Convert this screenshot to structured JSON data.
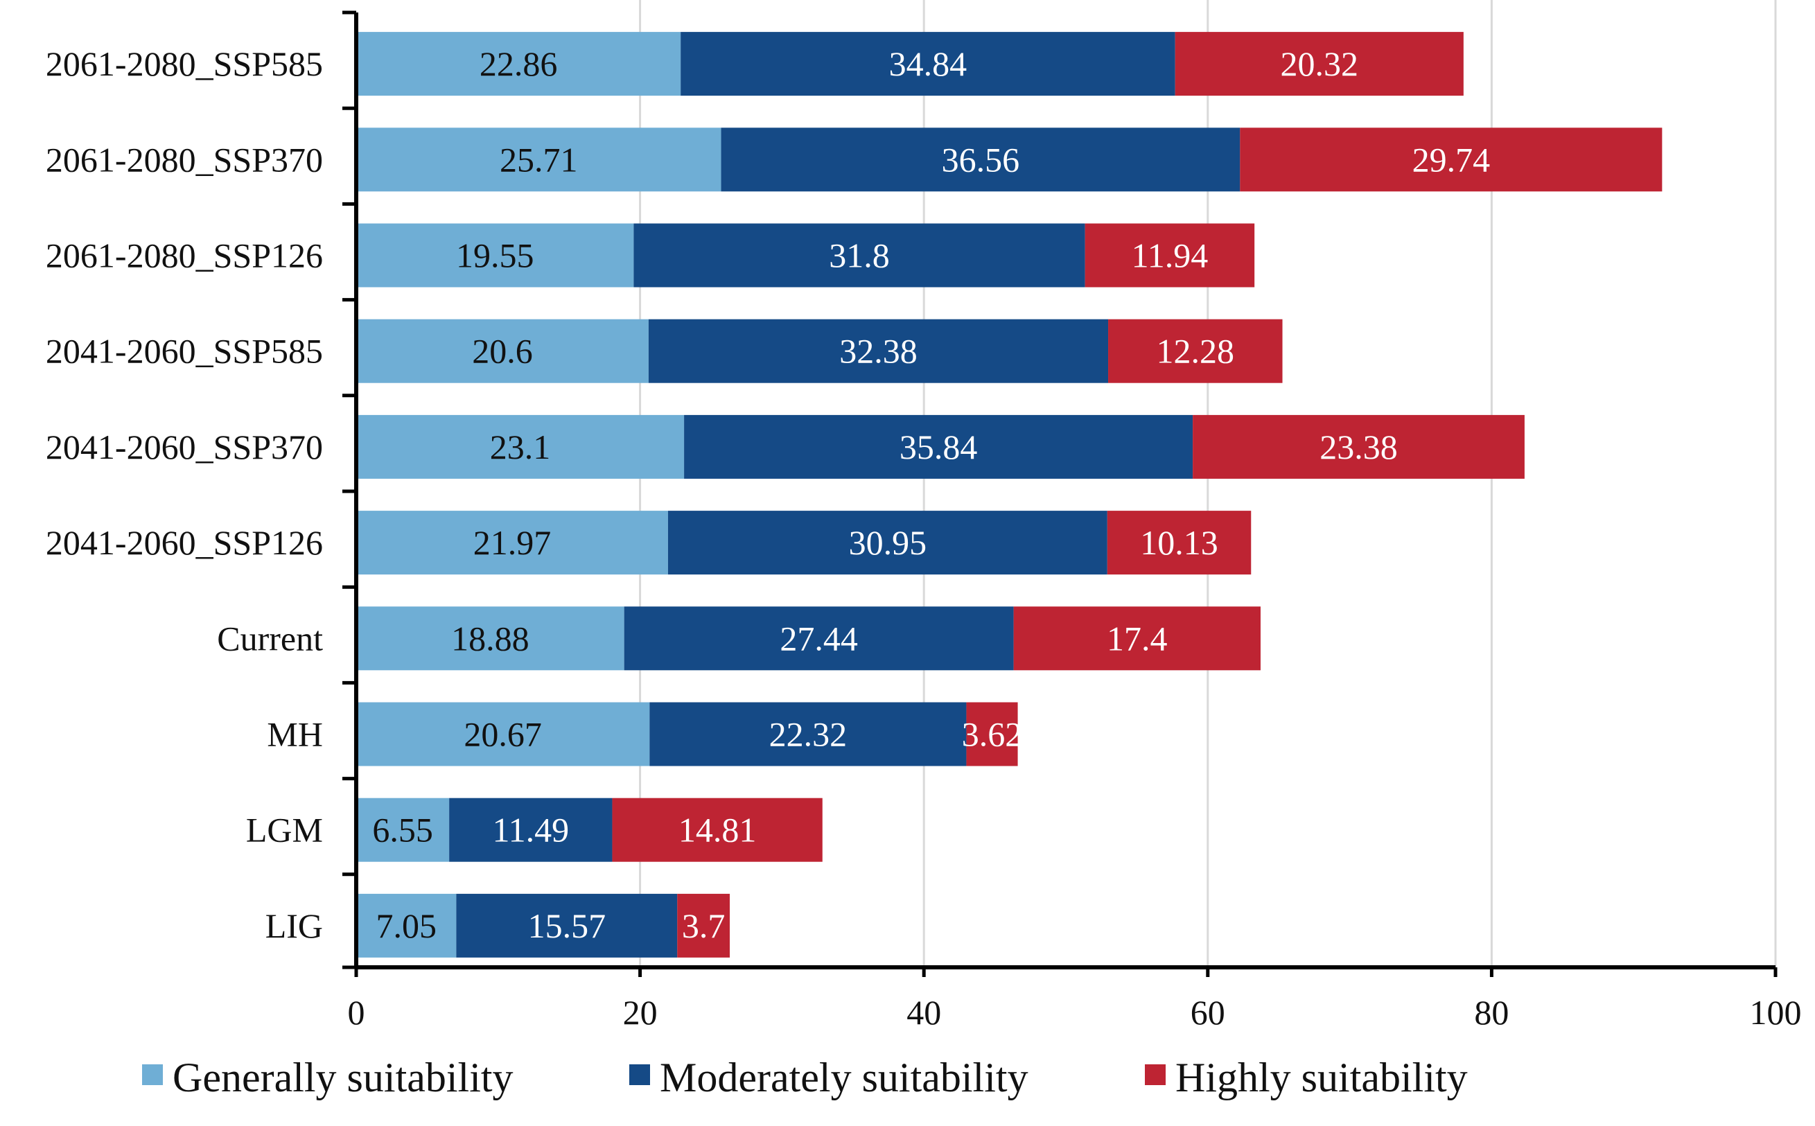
{
  "chart_data": {
    "type": "bar",
    "orientation": "horizontal",
    "stacked": true,
    "title": "",
    "xlabel": "",
    "ylabel": "",
    "xlim": [
      0,
      100
    ],
    "xticks": [
      "0",
      "20",
      "40",
      "60",
      "80",
      "100"
    ],
    "grid": true,
    "legend_position": "bottom",
    "categories": [
      "2061-2080_SSP585",
      "2061-2080_SSP370",
      "2061-2080_SSP126",
      "2041-2060_SSP585",
      "2041-2060_SSP370",
      "2041-2060_SSP126",
      "Current",
      "MH",
      "LGM",
      "LIG"
    ],
    "series": [
      {
        "name": "Generally suitability",
        "color": "#6FAED5",
        "label_color": "#111111",
        "values": [
          22.86,
          25.71,
          19.55,
          20.6,
          23.1,
          21.97,
          18.88,
          20.67,
          6.55,
          7.05
        ],
        "labels": [
          "22.86",
          "25.71",
          "19.55",
          "20.6",
          "23.1",
          "21.97",
          "18.88",
          "20.67",
          "6.55",
          "7.05"
        ]
      },
      {
        "name": "Moderately suitability",
        "color": "#154A86",
        "label_color": "#FFFFFF",
        "values": [
          34.84,
          36.56,
          31.8,
          32.38,
          35.84,
          30.95,
          27.44,
          22.32,
          11.49,
          15.57
        ],
        "labels": [
          "34.84",
          "36.56",
          "31.8",
          "32.38",
          "35.84",
          "30.95",
          "27.44",
          "22.32",
          "11.49",
          "15.57"
        ]
      },
      {
        "name": "Highly suitability",
        "color": "#BE2433",
        "label_color": "#FFFFFF",
        "values": [
          20.32,
          29.74,
          11.94,
          12.28,
          23.38,
          10.13,
          17.4,
          3.62,
          14.81,
          3.7
        ],
        "labels": [
          "20.32",
          "29.74",
          "11.94",
          "12.28",
          "23.38",
          "10.13",
          "17.4",
          "3.62",
          "14.81",
          "3.7"
        ]
      }
    ]
  }
}
